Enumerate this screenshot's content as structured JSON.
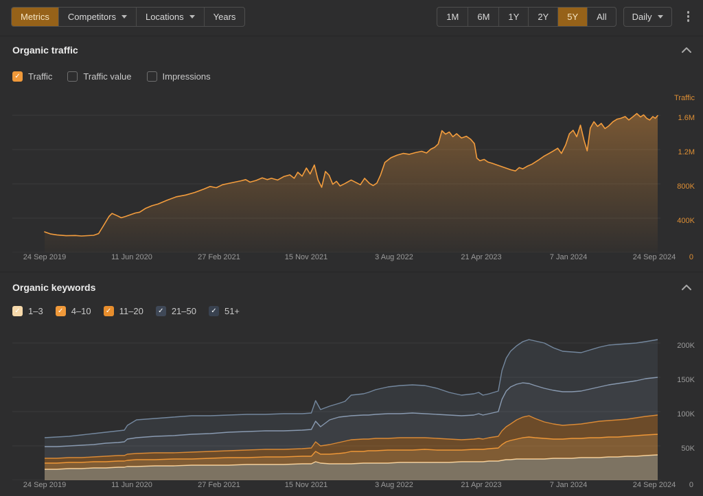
{
  "toolbar": {
    "metrics_label": "Metrics",
    "competitors_label": "Competitors",
    "locations_label": "Locations",
    "years_label": "Years",
    "ranges": [
      "1M",
      "6M",
      "1Y",
      "2Y",
      "5Y",
      "All"
    ],
    "active_range": "5Y",
    "granularity_label": "Daily"
  },
  "traffic_section": {
    "title": "Organic traffic",
    "checkboxes": [
      {
        "label": "Traffic",
        "checked": true,
        "color": "#f0993a"
      },
      {
        "label": "Traffic value",
        "checked": false
      },
      {
        "label": "Impressions",
        "checked": false
      }
    ],
    "axis_title": "Traffic",
    "y_ticks": [
      "1.6M",
      "1.2M",
      "800K",
      "400K"
    ],
    "zero_label": "0"
  },
  "keywords_section": {
    "title": "Organic keywords",
    "checkboxes": [
      {
        "label": "1–3",
        "checked": true,
        "color": "#f6d9ab"
      },
      {
        "label": "4–10",
        "checked": true,
        "color": "#f0993a"
      },
      {
        "label": "11–20",
        "checked": true,
        "color": "#e88e2d"
      },
      {
        "label": "21–50",
        "checked": true,
        "color": "#3f4857"
      },
      {
        "label": "51+",
        "checked": true,
        "color": "#394250"
      }
    ],
    "y_ticks": [
      "200K",
      "150K",
      "100K",
      "50K"
    ],
    "zero_label": "0"
  },
  "x_ticks": [
    "24 Sep 2019",
    "11 Jun 2020",
    "27 Feb 2021",
    "15 Nov 2021",
    "3 Aug 2022",
    "21 Apr 2023",
    "7 Jan 2024",
    "24 Sep 2024"
  ],
  "colors": {
    "background": "#2d2d2e",
    "accent_orange": "#f49d3d",
    "active_button_bg": "#966219",
    "gridline": "#3b3b3c",
    "axis_text_gray": "#9b9b9b",
    "axis_text_orange": "#de8f35"
  },
  "chart_data": [
    {
      "type": "area",
      "title": "Organic traffic",
      "xlabel": "",
      "ylabel": "Traffic",
      "x_tick_labels": [
        "24 Sep 2019",
        "11 Jun 2020",
        "27 Feb 2021",
        "15 Nov 2021",
        "3 Aug 2022",
        "21 Apr 2023",
        "7 Jan 2024",
        "24 Sep 2024"
      ],
      "y_axis": {
        "ticks_k": [
          400,
          800,
          1200,
          1600
        ],
        "tick_labels": [
          "400K",
          "800K",
          "1.2M",
          "1.6M"
        ],
        "max_k": 1824
      },
      "legend_position": "none",
      "grid": true,
      "series": [
        {
          "name": "Traffic",
          "color": "#f49d3d",
          "x_pct": [
            0,
            1,
            2,
            3.5,
            5,
            6,
            7,
            8,
            8.8,
            9.5,
            10.5,
            11,
            11.8,
            12.5,
            13.2,
            14,
            14.8,
            15.5,
            16.5,
            17.5,
            18.5,
            20,
            21.5,
            23,
            24.5,
            26,
            27,
            28,
            29,
            30,
            31,
            32,
            32.8,
            33.5,
            34.5,
            35.5,
            36.3,
            37,
            38,
            39,
            40,
            40.7,
            41.3,
            42,
            42.7,
            43.3,
            44,
            44.6,
            45.2,
            45.8,
            46.4,
            47,
            47.6,
            48.2,
            49,
            50,
            50.8,
            51.5,
            52.2,
            53,
            53.6,
            54.2,
            54.8,
            55.5,
            56.5,
            57.5,
            58.5,
            59.5,
            60.5,
            61.5,
            62.3,
            63,
            63.6,
            64.2,
            64.8,
            65.4,
            66,
            66.6,
            67.2,
            68,
            68.8,
            69.5,
            70.1,
            70.5,
            71,
            71.7,
            72.3,
            73,
            74,
            75,
            76,
            76.8,
            77.4,
            78,
            78.7,
            79.5,
            80.5,
            81.5,
            82.3,
            83,
            83.7,
            84.3,
            85,
            85.6,
            86.2,
            86.8,
            87.4,
            88,
            88.5,
            89,
            89.6,
            90.2,
            90.8,
            91.4,
            92,
            92.7,
            93.4,
            94,
            94.7,
            95.3,
            96,
            96.6,
            97.2,
            97.7,
            98.2,
            98.7,
            99.2,
            99.6,
            100
          ],
          "values_k": [
            240,
            215,
            205,
            195,
            198,
            192,
            196,
            200,
            220,
            300,
            420,
            455,
            430,
            405,
            420,
            440,
            460,
            470,
            515,
            545,
            565,
            610,
            650,
            670,
            700,
            740,
            770,
            755,
            790,
            805,
            820,
            835,
            850,
            820,
            840,
            870,
            850,
            865,
            845,
            885,
            905,
            865,
            935,
            890,
            985,
            915,
            1020,
            845,
            760,
            945,
            900,
            795,
            830,
            775,
            805,
            845,
            815,
            790,
            865,
            805,
            780,
            810,
            905,
            1050,
            1105,
            1135,
            1155,
            1145,
            1165,
            1180,
            1160,
            1205,
            1225,
            1265,
            1420,
            1380,
            1405,
            1350,
            1385,
            1335,
            1355,
            1320,
            1270,
            1100,
            1070,
            1085,
            1055,
            1040,
            1015,
            990,
            965,
            950,
            990,
            975,
            1005,
            1030,
            1075,
            1125,
            1155,
            1185,
            1215,
            1155,
            1255,
            1385,
            1425,
            1350,
            1485,
            1305,
            1185,
            1450,
            1525,
            1470,
            1505,
            1445,
            1475,
            1525,
            1555,
            1565,
            1585,
            1545,
            1585,
            1620,
            1580,
            1605,
            1565,
            1545,
            1585,
            1565,
            1595
          ]
        }
      ]
    },
    {
      "type": "stacked_area",
      "title": "Organic keywords",
      "xlabel": "",
      "ylabel": "",
      "x_tick_labels": [
        "24 Sep 2019",
        "11 Jun 2020",
        "27 Feb 2021",
        "15 Nov 2021",
        "3 Aug 2022",
        "21 Apr 2023",
        "7 Jan 2024",
        "24 Sep 2024"
      ],
      "y_axis": {
        "ticks_k": [
          50,
          100,
          150,
          200
        ],
        "tick_labels": [
          "50K",
          "100K",
          "150K",
          "200K"
        ],
        "max_k": 218
      },
      "legend_position": "top-checkboxes",
      "grid": true,
      "x_pct": [
        0,
        2,
        4,
        6,
        8,
        10,
        12,
        13,
        13.5,
        15,
        18,
        21,
        24,
        27,
        30,
        33,
        36,
        39,
        42,
        43.5,
        44.2,
        45,
        46.5,
        48,
        49,
        50,
        52,
        52.8,
        54,
        56,
        58,
        60,
        62,
        64,
        66,
        68,
        70,
        70.8,
        71.5,
        72.5,
        74,
        74.6,
        75.3,
        76,
        77,
        78,
        79,
        80,
        81.5,
        83,
        84.5,
        86,
        87.5,
        89,
        90.5,
        92,
        93.5,
        95,
        96.5,
        98,
        100
      ],
      "series": [
        {
          "name": "1–3",
          "line": "#f6ddb2",
          "fill": "rgba(246,221,178,0.40)",
          "values_k": [
            16,
            16,
            17,
            17,
            18,
            18,
            19,
            19,
            20,
            20,
            21,
            21,
            22,
            22,
            22,
            23,
            23,
            23,
            24,
            24,
            27,
            25,
            24,
            24,
            24,
            24,
            25,
            25,
            25,
            25,
            26,
            26,
            26,
            26,
            26,
            27,
            27,
            27,
            27,
            28,
            28,
            29,
            30,
            30,
            31,
            31,
            31,
            31,
            31,
            32,
            32,
            32,
            33,
            33,
            33,
            34,
            34,
            35,
            35,
            36,
            37
          ]
        },
        {
          "name": "4–10",
          "line": "#f49d3d",
          "fill": "rgba(244,157,61,0.42)",
          "values_k": [
            9,
            9,
            9,
            9,
            9,
            9,
            9,
            9,
            9,
            10,
            9,
            10,
            9,
            10,
            11,
            10,
            11,
            11,
            11,
            11,
            15,
            13,
            14,
            15,
            16,
            18,
            17,
            18,
            18,
            19,
            18,
            18,
            19,
            18,
            18,
            17,
            18,
            18,
            18,
            18,
            19,
            23,
            26,
            28,
            29,
            31,
            32,
            31,
            30,
            28,
            28,
            29,
            28,
            29,
            29,
            29,
            29,
            29,
            30,
            30,
            30
          ]
        },
        {
          "name": "11–20",
          "line": "#e2892b",
          "fill": "rgba(214,126,34,0.38)",
          "values_k": [
            7,
            7,
            7,
            7,
            7,
            8,
            8,
            8,
            9,
            9,
            10,
            9,
            10,
            10,
            10,
            11,
            11,
            11,
            11,
            12,
            14,
            12,
            14,
            16,
            17,
            17,
            18,
            17,
            18,
            17,
            18,
            18,
            17,
            17,
            16,
            15,
            15,
            16,
            15,
            16,
            17,
            20,
            22,
            24,
            28,
            30,
            31,
            28,
            24,
            22,
            20,
            20,
            21,
            22,
            24,
            24,
            25,
            25,
            26,
            27,
            28
          ]
        },
        {
          "name": "21–50",
          "line": "#8b9cb3",
          "fill": "rgba(139,156,179,0.17)",
          "values_k": [
            17,
            17,
            17,
            18,
            18,
            19,
            19,
            20,
            22,
            23,
            24,
            25,
            26,
            26,
            27,
            27,
            27,
            27,
            27,
            27,
            30,
            28,
            36,
            37,
            36,
            35,
            35,
            35,
            35,
            36,
            35,
            36,
            35,
            35,
            35,
            35,
            35,
            36,
            35,
            35,
            36,
            46,
            52,
            54,
            52,
            50,
            47,
            48,
            49,
            49,
            49,
            48,
            48,
            49,
            50,
            52,
            53,
            54,
            54,
            55,
            55
          ]
        },
        {
          "name": "51+",
          "line": "#74889f",
          "fill": "rgba(116,136,159,0.13)",
          "values_k": [
            13,
            14,
            14,
            15,
            16,
            16,
            17,
            17,
            20,
            26,
            26,
            27,
            27,
            26,
            25,
            25,
            24,
            25,
            24,
            24,
            30,
            25,
            20,
            20,
            22,
            30,
            31,
            33,
            36,
            39,
            41,
            41,
            41,
            38,
            33,
            30,
            31,
            31,
            29,
            29,
            30,
            42,
            48,
            52,
            56,
            60,
            64,
            65,
            66,
            62,
            59,
            58,
            56,
            57,
            58,
            58,
            57,
            56,
            55,
            54,
            55
          ]
        }
      ]
    }
  ]
}
